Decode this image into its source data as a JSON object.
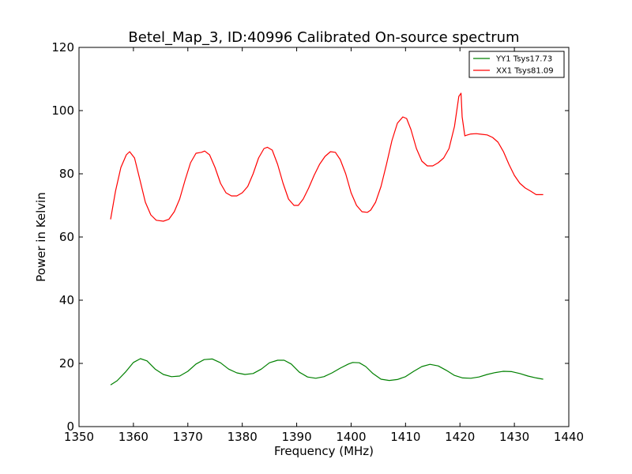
{
  "chart_data": {
    "type": "line",
    "title": "Betel_Map_3, ID:40996 Calibrated On-source spectrum",
    "xlabel": "Frequency (MHz)",
    "ylabel": "Power in Kelvin",
    "xlim": [
      1350,
      1440
    ],
    "ylim": [
      0,
      120
    ],
    "xticks": [
      1350,
      1360,
      1370,
      1380,
      1390,
      1400,
      1410,
      1420,
      1430,
      1440
    ],
    "yticks": [
      0,
      20,
      40,
      60,
      80,
      100,
      120
    ],
    "grid": false,
    "legend_position": "top-right",
    "series": [
      {
        "name": "YY1 Tsys17.73",
        "color": "#008000",
        "x": [
          1355.8,
          1357,
          1358.5,
          1360,
          1361.3,
          1362.5,
          1364,
          1365.5,
          1367,
          1368.5,
          1370,
          1371.5,
          1373,
          1374.5,
          1376,
          1377.5,
          1379,
          1380.5,
          1382,
          1383.5,
          1385,
          1386.5,
          1387.7,
          1389,
          1390.5,
          1392,
          1393.5,
          1395,
          1396.5,
          1398,
          1399.5,
          1400.3,
          1401.5,
          1402.7,
          1404,
          1405.5,
          1407,
          1408.5,
          1410,
          1411.5,
          1413,
          1414.5,
          1416,
          1417.5,
          1419,
          1420.5,
          1422,
          1423.5,
          1425,
          1426.5,
          1428,
          1429.5,
          1431,
          1432.5,
          1434,
          1435.3
        ],
        "y": [
          13.2,
          14.5,
          17.2,
          20.3,
          21.5,
          20.8,
          18.2,
          16.5,
          15.8,
          16.0,
          17.5,
          19.8,
          21.2,
          21.4,
          20.2,
          18.2,
          17.0,
          16.5,
          16.8,
          18.2,
          20.2,
          21.0,
          21.0,
          19.8,
          17.2,
          15.7,
          15.3,
          15.8,
          17.0,
          18.5,
          19.8,
          20.3,
          20.2,
          19.0,
          16.8,
          15.0,
          14.6,
          14.9,
          15.8,
          17.5,
          19.0,
          19.7,
          19.2,
          17.8,
          16.2,
          15.4,
          15.3,
          15.7,
          16.5,
          17.1,
          17.5,
          17.4,
          16.8,
          16.0,
          15.4,
          15.0
        ]
      },
      {
        "name": "XX1 Tsys81.09",
        "color": "#ff0000",
        "x": [
          1355.8,
          1356.7,
          1357.7,
          1358.7,
          1359.3,
          1360.2,
          1361.2,
          1362.2,
          1363.2,
          1364.2,
          1365.5,
          1366.5,
          1367.5,
          1368.5,
          1369.5,
          1370.5,
          1371.5,
          1372.5,
          1373.1,
          1374,
          1375,
          1376,
          1377,
          1378,
          1379,
          1380,
          1381,
          1382,
          1383,
          1384,
          1384.6,
          1385.5,
          1386.5,
          1387.5,
          1388.5,
          1389.5,
          1390.3,
          1391.2,
          1392.2,
          1393.2,
          1394.2,
          1395.2,
          1396.2,
          1397.1,
          1398,
          1399,
          1400,
          1401,
          1402,
          1403,
          1403.6,
          1404.5,
          1405.5,
          1406.5,
          1407.5,
          1408.5,
          1409.5,
          1410.2,
          1411,
          1412,
          1413,
          1414,
          1415,
          1416,
          1417,
          1418,
          1419,
          1419.8,
          1420.2,
          1420.4,
          1420.9,
          1421.2,
          1422,
          1423,
          1424,
          1425,
          1426,
          1427,
          1428,
          1429,
          1430,
          1431,
          1432,
          1433,
          1434,
          1435.3
        ],
        "y": [
          65.6,
          74.5,
          82.0,
          86.0,
          87.0,
          85.0,
          78.0,
          71.0,
          67.0,
          65.3,
          65.0,
          65.6,
          68.0,
          72.0,
          78.0,
          83.5,
          86.5,
          86.8,
          87.2,
          86.0,
          82.0,
          77.0,
          74.0,
          73.0,
          73.0,
          74.0,
          76.0,
          80.0,
          85.0,
          88.0,
          88.4,
          87.5,
          83.0,
          77.0,
          72.0,
          70.0,
          70.0,
          72.0,
          75.5,
          79.5,
          83.0,
          85.5,
          87.0,
          86.8,
          84.5,
          80.0,
          74.0,
          70.0,
          68.0,
          67.8,
          68.5,
          71.0,
          76.0,
          83.0,
          90.5,
          96.0,
          98.0,
          97.5,
          94.0,
          88.0,
          84.0,
          82.5,
          82.5,
          83.5,
          85.0,
          88.0,
          95.0,
          104.5,
          105.5,
          98.0,
          92.0,
          92.2,
          92.6,
          92.7,
          92.5,
          92.3,
          91.5,
          90.0,
          87.0,
          83.0,
          79.5,
          77.0,
          75.5,
          74.5,
          73.4,
          73.4
        ]
      }
    ]
  }
}
